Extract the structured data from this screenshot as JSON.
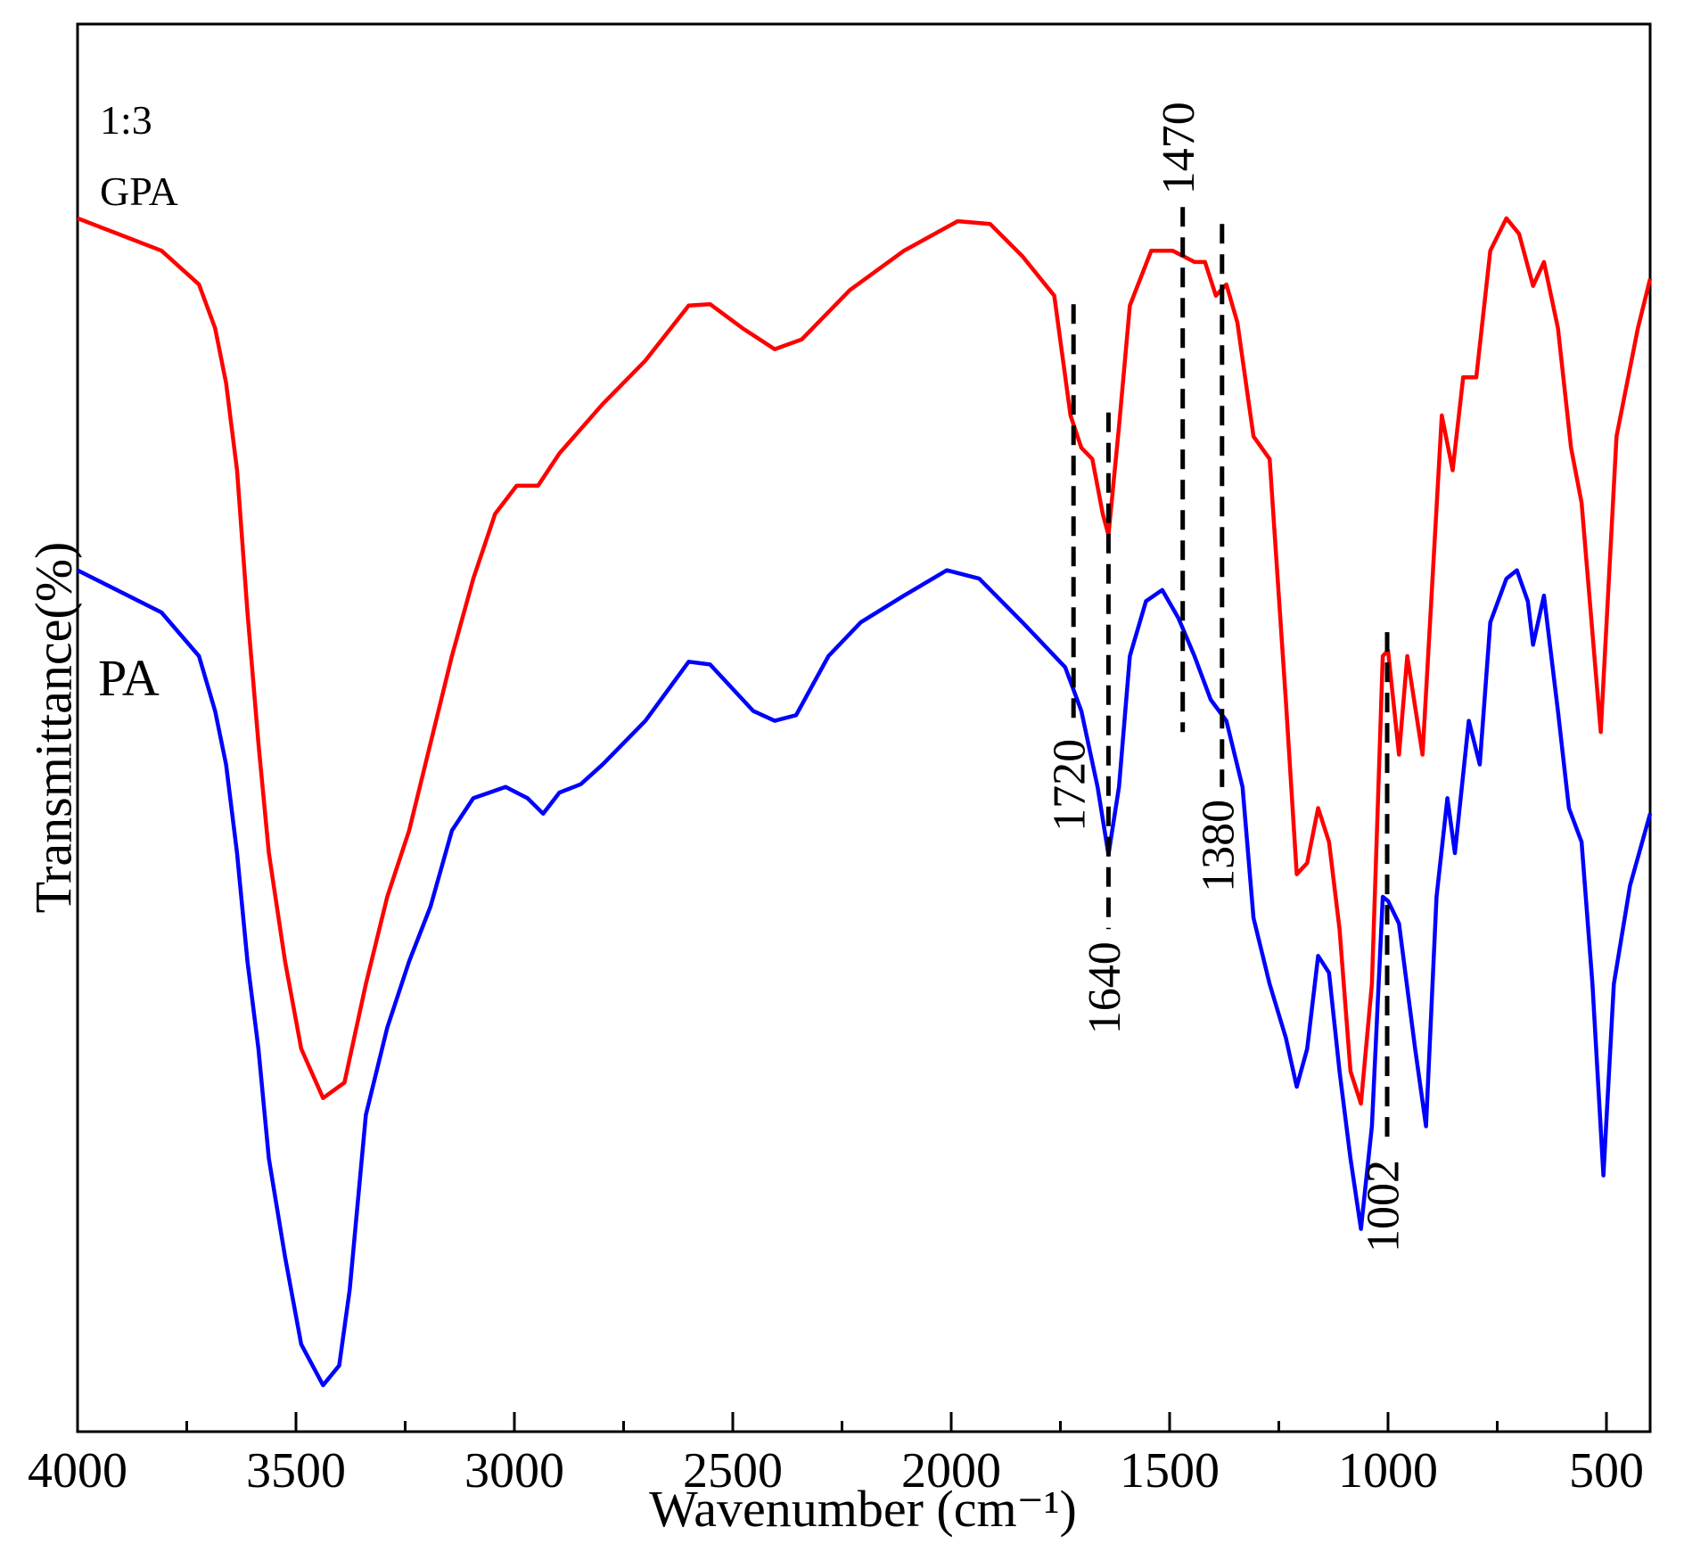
{
  "chart_data": {
    "type": "line",
    "x_label": "Wavenumber (cm⁻¹)",
    "y_label": "Transmittance(%)",
    "xlim": [
      4000,
      400
    ],
    "ylim": [
      0,
      100
    ],
    "xticks": [
      4000,
      3500,
      3000,
      2500,
      2000,
      1500,
      1000,
      500
    ],
    "xminor": [
      3750,
      3250,
      2750,
      2250,
      1750,
      1250,
      750
    ],
    "series": [
      {
        "name": "1:3 GPA",
        "color": "#ff0000",
        "x": [
          4000,
          3808,
          3722,
          3685,
          3660,
          3635,
          3611,
          3586,
          3562,
          3525,
          3488,
          3438,
          3389,
          3340,
          3291,
          3241,
          3192,
          3143,
          3094,
          3044,
          2995,
          2946,
          2897,
          2798,
          2700,
          2601,
          2552,
          2478,
          2404,
          2342,
          2232,
          2108,
          1985,
          1911,
          1837,
          1764,
          1727,
          1702,
          1677,
          1653,
          1640,
          1616,
          1591,
          1542,
          1493,
          1443,
          1419,
          1394,
          1370,
          1345,
          1308,
          1271,
          1234,
          1209,
          1185,
          1160,
          1135,
          1111,
          1086,
          1062,
          1037,
          1012,
          1000,
          975,
          956,
          921,
          877,
          852,
          828,
          798,
          766,
          729,
          700,
          668,
          643,
          611,
          581,
          557,
          513,
          477,
          428,
          400
        ],
        "values": [
          86.2,
          83.9,
          81.5,
          78.4,
          74.5,
          68.3,
          58.2,
          48.9,
          41.1,
          33.4,
          27.2,
          23.7,
          24.8,
          31.8,
          38.0,
          42.7,
          48.9,
          55.1,
          60.6,
          65.2,
          67.2,
          67.2,
          69.5,
          73.0,
          76.1,
          80.0,
          80.1,
          78.4,
          76.9,
          77.6,
          81.1,
          83.9,
          86.0,
          85.8,
          83.5,
          80.7,
          72.2,
          69.9,
          69.1,
          65.2,
          63.7,
          71.4,
          80.0,
          83.9,
          83.9,
          83.1,
          83.1,
          80.7,
          81.5,
          78.8,
          70.7,
          69.1,
          52.0,
          39.6,
          40.4,
          44.3,
          41.9,
          35.7,
          25.6,
          23.3,
          31.8,
          55.1,
          55.5,
          48.1,
          55.1,
          48.1,
          72.2,
          68.3,
          74.9,
          74.9,
          83.9,
          86.2,
          85.1,
          81.4,
          83.1,
          78.4,
          69.9,
          66.0,
          49.7,
          70.7,
          78.4,
          81.9
        ]
      },
      {
        "name": "PA",
        "color": "#0000ff",
        "x": [
          4000,
          3808,
          3722,
          3685,
          3660,
          3635,
          3611,
          3586,
          3562,
          3525,
          3488,
          3438,
          3401,
          3377,
          3340,
          3291,
          3241,
          3192,
          3143,
          3094,
          3020,
          2970,
          2934,
          2897,
          2848,
          2798,
          2700,
          2601,
          2552,
          2453,
          2404,
          2355,
          2281,
          2207,
          2108,
          2010,
          1936,
          1837,
          1739,
          1702,
          1665,
          1640,
          1616,
          1591,
          1554,
          1517,
          1480,
          1443,
          1406,
          1370,
          1333,
          1308,
          1271,
          1234,
          1209,
          1185,
          1160,
          1135,
          1111,
          1086,
          1062,
          1037,
          1012,
          1000,
          975,
          938,
          913,
          889,
          864,
          847,
          815,
          790,
          766,
          729,
          705,
          680,
          668,
          643,
          611,
          586,
          557,
          532,
          507,
          483,
          446,
          400
        ],
        "values": [
          61.2,
          58.2,
          55.1,
          51.2,
          47.4,
          41.1,
          33.4,
          27.2,
          19.4,
          12.4,
          6.2,
          3.3,
          4.7,
          10.1,
          22.5,
          28.7,
          33.4,
          37.3,
          42.7,
          45.0,
          45.8,
          45.0,
          43.9,
          45.4,
          46.0,
          47.4,
          50.5,
          54.7,
          54.5,
          51.2,
          50.5,
          50.9,
          55.1,
          57.5,
          59.4,
          61.2,
          60.6,
          57.5,
          54.3,
          51.2,
          45.8,
          41.0,
          45.8,
          55.1,
          59.0,
          59.8,
          57.8,
          55.1,
          52.0,
          50.5,
          45.8,
          36.5,
          31.8,
          28.0,
          24.5,
          27.2,
          33.8,
          32.6,
          25.6,
          19.4,
          14.4,
          21.7,
          38.0,
          37.7,
          36.1,
          27.2,
          21.7,
          38.0,
          45.0,
          41.1,
          50.5,
          47.4,
          57.5,
          60.6,
          61.2,
          59.0,
          55.9,
          59.4,
          51.2,
          44.3,
          41.9,
          31.8,
          18.2,
          31.8,
          38.8,
          43.9
        ]
      }
    ],
    "annotations": [
      {
        "text": "1720",
        "x": 1720,
        "y_range": [
          80.1,
          50.1
        ],
        "label_side": "below"
      },
      {
        "text": "1640",
        "x": 1640,
        "y_range": [
          72.4,
          35.7
        ],
        "label_side": "below"
      },
      {
        "text": "1470",
        "x": 1470,
        "y_range": [
          87.0,
          49.7
        ],
        "label_side": "above"
      },
      {
        "text": "1380",
        "x": 1380,
        "y_range": [
          85.8,
          45.8
        ],
        "label_side": "below"
      },
      {
        "text": "1002",
        "x": 1002,
        "y_range": [
          56.8,
          20.2
        ],
        "label_side": "below"
      }
    ]
  }
}
